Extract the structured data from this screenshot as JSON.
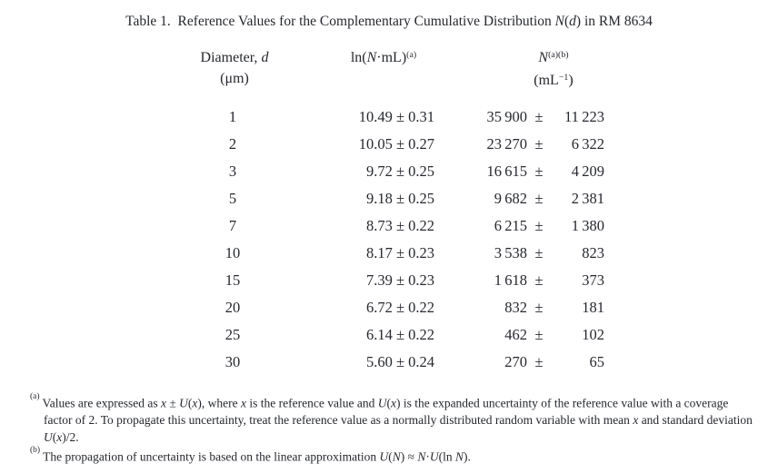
{
  "colors": {
    "text": "#26282e",
    "background": "#ffffff"
  },
  "title": {
    "segments": [
      {
        "t": "Table 1.  Reference Values for the Complementary Cumulative Distribution "
      },
      {
        "t": "N",
        "i": true
      },
      {
        "t": "("
      },
      {
        "t": "d",
        "i": true
      },
      {
        "t": ") in RM 8634"
      }
    ]
  },
  "table": {
    "plus_minus": "±",
    "headers": {
      "diameter": {
        "line1_segments": [
          {
            "t": "Diameter, "
          },
          {
            "t": "d",
            "i": true
          }
        ],
        "line2_segments": [
          {
            "t": "(μm)"
          }
        ]
      },
      "ln": {
        "segments": [
          {
            "t": "ln("
          },
          {
            "t": "N",
            "i": true
          },
          {
            "t": "·mL)"
          },
          {
            "t": "(a)",
            "sup": true
          }
        ]
      },
      "n": {
        "line1_segments": [
          {
            "t": "N",
            "i": true
          },
          {
            "t": "(a)(b)",
            "sup": true
          }
        ],
        "line2_segments": [
          {
            "t": "(mL"
          },
          {
            "t": "−1",
            "sup": true
          },
          {
            "t": ")"
          }
        ]
      }
    },
    "rows": [
      {
        "d": "1",
        "ln": "10.49 ± 0.31",
        "n": "35 900",
        "u": "11 223"
      },
      {
        "d": "2",
        "ln": "10.05 ± 0.27",
        "n": "23 270",
        "u": "6 322"
      },
      {
        "d": "3",
        "ln": "9.72 ± 0.25",
        "n": "16 615",
        "u": "4 209"
      },
      {
        "d": "5",
        "ln": "9.18 ± 0.25",
        "n": "9 682",
        "u": "2 381"
      },
      {
        "d": "7",
        "ln": "8.73 ± 0.22",
        "n": "6 215",
        "u": "1 380"
      },
      {
        "d": "10",
        "ln": "8.17 ± 0.23",
        "n": "3 538",
        "u": "823"
      },
      {
        "d": "15",
        "ln": "7.39 ± 0.23",
        "n": "1 618",
        "u": "373"
      },
      {
        "d": "20",
        "ln": "6.72 ± 0.22",
        "n": "832",
        "u": "181"
      },
      {
        "d": "25",
        "ln": "6.14 ± 0.22",
        "n": "462",
        "u": "102"
      },
      {
        "d": "30",
        "ln": "5.60 ± 0.24",
        "n": "270",
        "u": "65"
      }
    ]
  },
  "footnotes": [
    {
      "marker": "(a)",
      "segments": [
        {
          "t": "Values are expressed as "
        },
        {
          "t": "x",
          "i": true
        },
        {
          "t": " ± "
        },
        {
          "t": "U",
          "i": true
        },
        {
          "t": "("
        },
        {
          "t": "x",
          "i": true
        },
        {
          "t": "), where "
        },
        {
          "t": "x",
          "i": true
        },
        {
          "t": " is the reference value and "
        },
        {
          "t": "U",
          "i": true
        },
        {
          "t": "("
        },
        {
          "t": "x",
          "i": true
        },
        {
          "t": ") is the expanded uncertainty of the reference value with a coverage factor of 2. To propagate this uncertainty, treat the reference value as a normally distributed random variable with mean "
        },
        {
          "t": "x",
          "i": true
        },
        {
          "t": " and standard deviation "
        },
        {
          "t": "U",
          "i": true
        },
        {
          "t": "("
        },
        {
          "t": "x",
          "i": true
        },
        {
          "t": ")/2."
        }
      ]
    },
    {
      "marker": "(b)",
      "segments": [
        {
          "t": "The propagation of uncertainty is based on the linear approximation "
        },
        {
          "t": "U",
          "i": true
        },
        {
          "t": "("
        },
        {
          "t": "N",
          "i": true
        },
        {
          "t": ") ≈ "
        },
        {
          "t": "N",
          "i": true
        },
        {
          "t": "·"
        },
        {
          "t": "U",
          "i": true
        },
        {
          "t": "(ln "
        },
        {
          "t": "N",
          "i": true
        },
        {
          "t": ")."
        }
      ]
    }
  ]
}
